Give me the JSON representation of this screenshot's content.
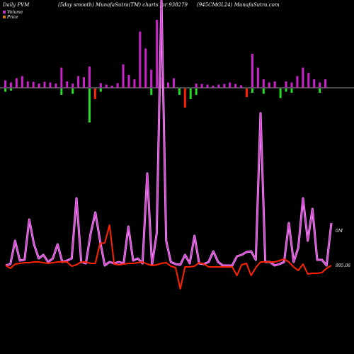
{
  "header": {
    "left": "Daily PVM",
    "center": "(5day smooth) MunafaSutra(TM) charts for 938279",
    "right": "(945CMGL24) MunafaSutra.com"
  },
  "legend": [
    {
      "label": "Volume",
      "color": "#cc33cc"
    },
    {
      "label": "Price",
      "color": "#cc7722"
    }
  ],
  "colors": {
    "volume_line": "#cc44cc",
    "volume_glow": "#ff99ff",
    "price_line": "#ff2200",
    "up_bar": "#cc22cc",
    "up_bar_small": "#cc22cc",
    "down_bar_green": "#22dd22",
    "down_bar_red": "#ff2200",
    "baseline": "#999999"
  },
  "chart_data": {
    "type": "line",
    "volume_label": "0M",
    "price_label": "995.06",
    "volume_line": [
      375,
      373,
      340,
      368,
      367,
      310,
      345,
      365,
      360,
      370,
      365,
      345,
      370,
      368,
      365,
      280,
      370,
      372,
      330,
      300,
      340,
      375,
      370,
      372,
      370,
      372,
      320,
      368,
      365,
      372,
      245,
      374,
      330,
      0,
      340,
      370,
      373,
      374,
      360,
      372,
      333,
      372,
      373,
      370,
      355,
      370,
      375,
      375,
      375,
      362,
      360,
      356,
      355,
      367,
      160,
      370,
      370,
      375,
      373,
      370,
      315,
      370,
      350,
      280,
      340,
      295,
      367,
      367,
      375,
      315
    ],
    "price_line": [
      375,
      379,
      373,
      372,
      371,
      371,
      370,
      370,
      371,
      372,
      371,
      370,
      370,
      370,
      376,
      374,
      370,
      370,
      372,
      372,
      344,
      343,
      318,
      373,
      374,
      373,
      372,
      372,
      371,
      370,
      373,
      375,
      374,
      372,
      371,
      376,
      378,
      408,
      377,
      377,
      376,
      371,
      373,
      377,
      377,
      377,
      377,
      377,
      377,
      389,
      374,
      372,
      389,
      378,
      370,
      370,
      370,
      370,
      368,
      366,
      370,
      377,
      382,
      373,
      387,
      386,
      386,
      385,
      379,
      375
    ],
    "bars": [
      {
        "dir": "up",
        "size": 0.35,
        "dn": 0.15,
        "color": "up"
      },
      {
        "dir": "up",
        "size": 0.25,
        "dn": 0.1,
        "color": "up"
      },
      {
        "dir": "up",
        "size": 0.45,
        "dn": 0.0,
        "color": "up"
      },
      {
        "dir": "up",
        "size": 0.55,
        "dn": 0.0,
        "color": "up"
      },
      {
        "dir": "up",
        "size": 0.3,
        "dn": 0.0,
        "color": "up"
      },
      {
        "dir": "up",
        "size": 0.28,
        "dn": 0.0,
        "color": "up"
      },
      {
        "dir": "up",
        "size": 0.2,
        "dn": 0.0,
        "color": "up"
      },
      {
        "dir": "up",
        "size": 0.28,
        "dn": 0.0,
        "color": "up"
      },
      {
        "dir": "up",
        "size": 0.25,
        "dn": 0.0,
        "color": "up"
      },
      {
        "dir": "up",
        "size": 0.2,
        "dn": 0.0,
        "color": "up"
      },
      {
        "dir": "up",
        "size": 0.95,
        "dn": 0.3,
        "color": "up"
      },
      {
        "dir": "up",
        "size": 0.3,
        "dn": 0.0,
        "color": "up"
      },
      {
        "dir": "up",
        "size": 0.2,
        "dn": 0.25,
        "color": "green"
      },
      {
        "dir": "up",
        "size": 0.55,
        "dn": 0.0,
        "color": "up"
      },
      {
        "dir": "up",
        "size": 0.5,
        "dn": 0.0,
        "color": "up"
      },
      {
        "dir": "down",
        "size": 1.0,
        "dn": 1.6,
        "color": "green"
      },
      {
        "dir": "down",
        "size": 0.0,
        "dn": 0.5,
        "color": "red"
      },
      {
        "dir": "up",
        "size": 0.22,
        "dn": 0.15,
        "color": "up"
      },
      {
        "dir": "up",
        "size": 0.15,
        "dn": 0.0,
        "color": "up"
      },
      {
        "dir": "up",
        "size": 0.1,
        "dn": 0.0,
        "color": "up"
      },
      {
        "dir": "up",
        "size": 0.22,
        "dn": 0.0,
        "color": "up"
      },
      {
        "dir": "up",
        "size": 1.1,
        "dn": 0.0,
        "color": "up"
      },
      {
        "dir": "up",
        "size": 0.6,
        "dn": 0.0,
        "color": "up"
      },
      {
        "dir": "up",
        "size": 0.4,
        "dn": 0.0,
        "color": "up"
      },
      {
        "dir": "up",
        "size": 2.65,
        "dn": 0.0,
        "color": "up"
      },
      {
        "dir": "up",
        "size": 1.85,
        "dn": 0.0,
        "color": "up"
      },
      {
        "dir": "up",
        "size": 0.85,
        "dn": 0.3,
        "color": "up"
      },
      {
        "dir": "up",
        "size": 3.2,
        "dn": 0.0,
        "color": "up"
      },
      {
        "dir": "up",
        "size": 0.5,
        "dn": 0.0,
        "color": "up"
      },
      {
        "dir": "up",
        "size": 0.25,
        "dn": 0.0,
        "color": "up"
      },
      {
        "dir": "up",
        "size": 0.45,
        "dn": 0.0,
        "color": "up"
      },
      {
        "dir": "down",
        "size": 0.0,
        "dn": 0.3,
        "color": "green"
      },
      {
        "dir": "down",
        "size": 0.0,
        "dn": 0.9,
        "color": "red"
      },
      {
        "dir": "down",
        "size": 0.0,
        "dn": 0.5,
        "color": "green"
      },
      {
        "dir": "up",
        "size": 0.2,
        "dn": 0.3,
        "color": "up"
      },
      {
        "dir": "up",
        "size": 0.18,
        "dn": 0.0,
        "color": "up"
      },
      {
        "dir": "up",
        "size": 0.15,
        "dn": 0.0,
        "color": "up"
      },
      {
        "dir": "up",
        "size": 0.1,
        "dn": 0.0,
        "color": "up"
      },
      {
        "dir": "up",
        "size": 0.15,
        "dn": 0.0,
        "color": "up"
      },
      {
        "dir": "up",
        "size": 0.18,
        "dn": 0.0,
        "color": "up"
      },
      {
        "dir": "up",
        "size": 0.25,
        "dn": 0.0,
        "color": "up"
      },
      {
        "dir": "up",
        "size": 0.18,
        "dn": 0.0,
        "color": "up"
      },
      {
        "dir": "up",
        "size": 0.12,
        "dn": 0.0,
        "color": "up"
      },
      {
        "dir": "down",
        "size": 0.0,
        "dn": 0.4,
        "color": "red"
      },
      {
        "dir": "up",
        "size": 1.6,
        "dn": 0.2,
        "color": "up"
      },
      {
        "dir": "up",
        "size": 0.95,
        "dn": 0.0,
        "color": "up"
      },
      {
        "dir": "up",
        "size": 0.4,
        "dn": 0.25,
        "color": "up"
      },
      {
        "dir": "up",
        "size": 0.25,
        "dn": 0.0,
        "color": "up"
      },
      {
        "dir": "up",
        "size": 0.3,
        "dn": 0.0,
        "color": "up"
      },
      {
        "dir": "down",
        "size": 0.0,
        "dn": 0.45,
        "color": "green"
      },
      {
        "dir": "up",
        "size": 0.3,
        "dn": 0.15,
        "color": "up"
      },
      {
        "dir": "up",
        "size": 0.25,
        "dn": 0.2,
        "color": "green"
      },
      {
        "dir": "up",
        "size": 0.55,
        "dn": 0.0,
        "color": "up"
      },
      {
        "dir": "up",
        "size": 0.95,
        "dn": 0.0,
        "color": "up"
      },
      {
        "dir": "up",
        "size": 0.7,
        "dn": 0.0,
        "color": "up"
      },
      {
        "dir": "up",
        "size": 0.4,
        "dn": 0.0,
        "color": "up"
      },
      {
        "dir": "up",
        "size": 0.25,
        "dn": 0.2,
        "color": "green"
      },
      {
        "dir": "up",
        "size": 0.4,
        "dn": 0.0,
        "color": "up"
      }
    ],
    "bar_x": [
      8,
      14,
      20,
      26,
      32,
      38,
      44,
      50,
      56,
      62,
      68,
      74,
      80,
      86,
      92,
      98,
      104,
      110,
      116,
      122,
      128,
      134,
      140,
      146,
      152,
      158,
      164,
      170,
      176,
      182,
      188,
      194,
      200,
      206,
      212,
      218,
      224,
      230,
      236,
      242,
      248,
      254,
      260,
      266,
      272,
      278,
      284,
      290,
      296,
      302,
      308,
      314,
      320,
      326,
      332,
      338,
      344,
      350
    ],
    "ylim": [
      0,
      500
    ]
  }
}
